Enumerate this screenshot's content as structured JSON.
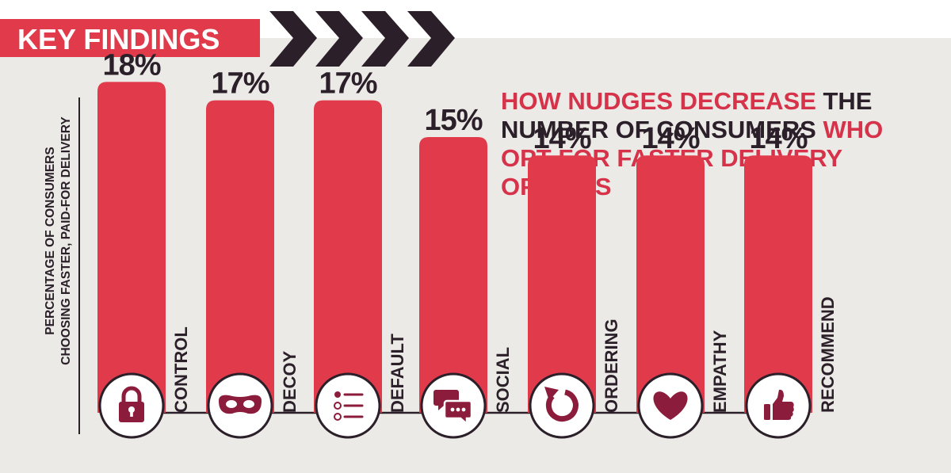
{
  "header": {
    "label": "KEY FINDINGS"
  },
  "title_lines": [
    [
      {
        "text": "HOW NUDGES DECREASE",
        "color": "#d6334a"
      },
      {
        "text": " THE",
        "color": "#2b2029"
      }
    ],
    [
      {
        "text": "NUMBER OF CONSUMERS",
        "color": "#2b2029"
      },
      {
        "text": " WHO",
        "color": "#d6334a"
      }
    ],
    [
      {
        "text": "OPT FOR FASTER DELIVERY",
        "color": "#d6334a"
      }
    ],
    [
      {
        "text": "OPTIONS",
        "color": "#d6334a"
      }
    ]
  ],
  "colors": {
    "bar": "#e03a4b",
    "dark": "#2b2029",
    "icon": "#8c1c3b",
    "accent": "#d6334a",
    "background": "#eceae7"
  },
  "chart_data": {
    "type": "bar",
    "ylabel": [
      "PERCENTAGE OF CONSUMERS",
      "CHOOSING FASTER, PAID-FOR DELIVERY"
    ],
    "categories": [
      "CONTROL",
      "DECOY",
      "DEFAULT",
      "SOCIAL",
      "ORDERING",
      "EMPATHY",
      "RECOMMEND"
    ],
    "values": [
      18,
      17,
      17,
      15,
      14,
      14,
      14
    ],
    "value_labels": [
      "18%",
      "17%",
      "17%",
      "15%",
      "14%",
      "14%",
      "14%"
    ],
    "icons": [
      "lock-icon",
      "mask-icon",
      "list-icon",
      "chat-icon",
      "refresh-icon",
      "heart-icon",
      "thumbs-up-icon"
    ],
    "unit": "%",
    "grid": false,
    "legend": "none"
  }
}
